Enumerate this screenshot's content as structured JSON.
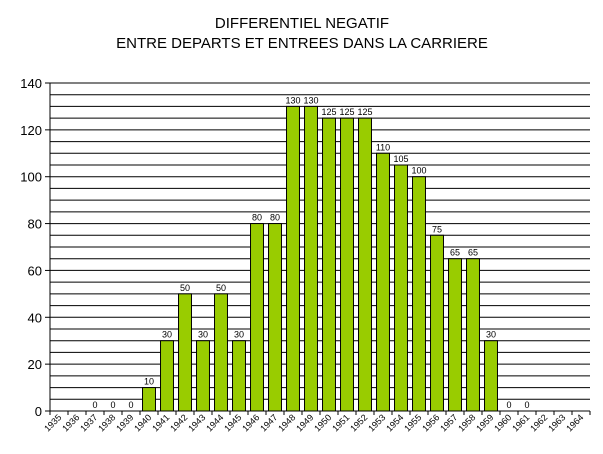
{
  "chart_data": {
    "type": "bar",
    "title_lines": [
      "DIFFERENTIEL NEGATIF",
      "ENTRE DEPARTS ET ENTREES DANS LA CARRIERE"
    ],
    "xlabel": "",
    "ylabel": "",
    "ylim": [
      0,
      140
    ],
    "y_ticks": [
      0,
      20,
      40,
      60,
      80,
      100,
      120,
      140
    ],
    "grid": true,
    "bar_color": "#99cc00",
    "categories": [
      "1935",
      "1936",
      "1937",
      "1938",
      "1939",
      "1940",
      "1941",
      "1942",
      "1943",
      "1944",
      "1945",
      "1946",
      "1947",
      "1948",
      "1949",
      "1950",
      "1951",
      "1952",
      "1953",
      "1954",
      "1955",
      "1956",
      "1957",
      "1958",
      "1959",
      "1960",
      "1961",
      "1962",
      "1963",
      "1964"
    ],
    "values": [
      null,
      null,
      0,
      0,
      0,
      10,
      30,
      50,
      30,
      50,
      30,
      80,
      80,
      130,
      130,
      125,
      125,
      125,
      110,
      105,
      100,
      75,
      65,
      65,
      30,
      0,
      0,
      null,
      null,
      null
    ]
  }
}
